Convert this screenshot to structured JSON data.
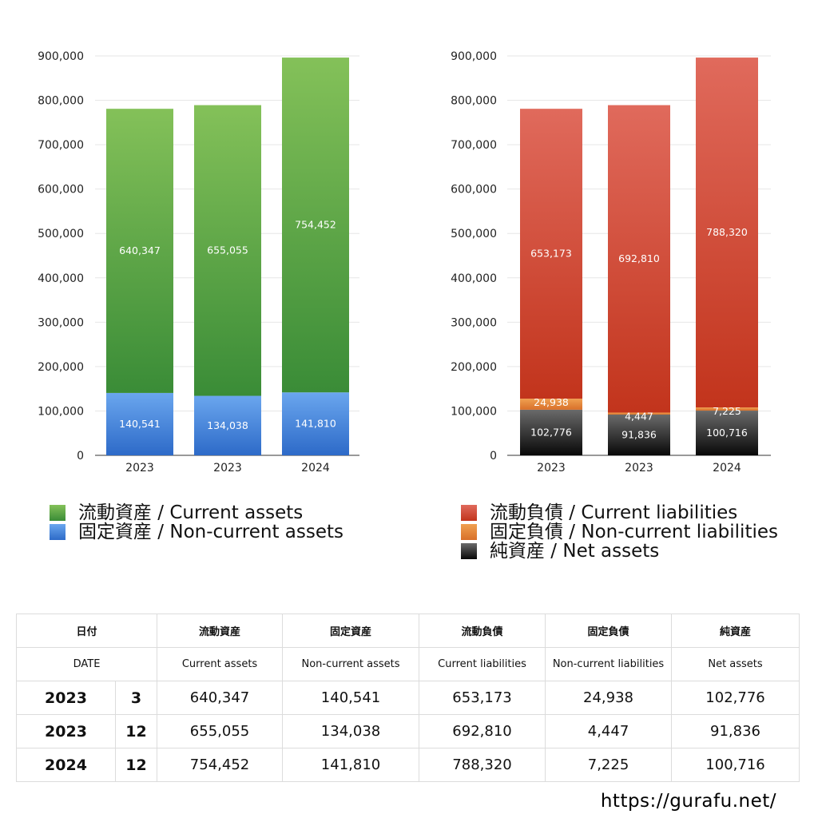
{
  "chart_data": [
    {
      "type": "bar",
      "stacked": true,
      "categories": [
        "2023",
        "2023",
        "2024"
      ],
      "ylim": [
        0,
        900000
      ],
      "yticks": [
        0,
        100000,
        200000,
        300000,
        400000,
        500000,
        600000,
        700000,
        800000,
        900000
      ],
      "ytick_labels": [
        "0",
        "100,000",
        "200,000",
        "300,000",
        "400,000",
        "500,000",
        "600,000",
        "700,000",
        "800,000",
        "900,000"
      ],
      "grid": true,
      "series": [
        {
          "name": "固定資産 / Non-current assets",
          "color": "#3f7fd9",
          "values": [
            140541,
            134038,
            141810
          ],
          "labels": [
            "140,541",
            "134,038",
            "141,810"
          ]
        },
        {
          "name": "流動資産 / Current assets",
          "color": "#57a64a",
          "values": [
            640347,
            655055,
            754452
          ],
          "labels": [
            "640,347",
            "655,055",
            "754,452"
          ]
        }
      ],
      "legend_position": "bottom"
    },
    {
      "type": "bar",
      "stacked": true,
      "categories": [
        "2023",
        "2023",
        "2024"
      ],
      "ylim": [
        0,
        900000
      ],
      "yticks": [
        0,
        100000,
        200000,
        300000,
        400000,
        500000,
        600000,
        700000,
        800000,
        900000
      ],
      "ytick_labels": [
        "0",
        "100,000",
        "200,000",
        "300,000",
        "400,000",
        "500,000",
        "600,000",
        "700,000",
        "800,000",
        "900,000"
      ],
      "grid": true,
      "series": [
        {
          "name": "純資産 / Net assets",
          "color": "#333333",
          "values": [
            102776,
            91836,
            100716
          ],
          "labels": [
            "102,776",
            "91,836",
            "100,716"
          ]
        },
        {
          "name": "固定負債 / Non-current liabilities",
          "color": "#e8883a",
          "values": [
            24938,
            4447,
            7225
          ],
          "labels": [
            "24,938",
            "4,447",
            "7,225"
          ]
        },
        {
          "name": "流動負債 / Current liabilities",
          "color": "#d44a35",
          "values": [
            653173,
            692810,
            788320
          ],
          "labels": [
            "653,173",
            "692,810",
            "788,320"
          ]
        }
      ],
      "legend_position": "bottom"
    }
  ],
  "legend_left": [
    {
      "label": "流動資産 / Current assets",
      "color": "#57a64a"
    },
    {
      "label": "固定資産 / Non-current assets",
      "color": "#3f7fd9"
    }
  ],
  "legend_right": [
    {
      "label": "流動負債 / Current liabilities",
      "color": "#d44a35"
    },
    {
      "label": "固定負債 / Non-current liabilities",
      "color": "#e8883a"
    },
    {
      "label": "純資産 / Net assets",
      "color": "#222222"
    }
  ],
  "table": {
    "header_jp": {
      "date": "日付",
      "current_assets": "流動資産",
      "noncurrent_assets": "固定資産",
      "current_liabilities": "流動負債",
      "noncurrent_liabilities": "固定負債",
      "net_assets": "純資産"
    },
    "header_en": {
      "date": "DATE",
      "current_assets": "Current assets",
      "noncurrent_assets": "Non-current assets",
      "current_liabilities": "Current liabilities",
      "noncurrent_liabilities": "Non-current liabilities",
      "net_assets": "Net assets"
    },
    "rows": [
      {
        "year": "2023",
        "month": "3",
        "current_assets": "640,347",
        "noncurrent_assets": "140,541",
        "current_liabilities": "653,173",
        "noncurrent_liabilities": "24,938",
        "net_assets": "102,776"
      },
      {
        "year": "2023",
        "month": "12",
        "current_assets": "655,055",
        "noncurrent_assets": "134,038",
        "current_liabilities": "692,810",
        "noncurrent_liabilities": "4,447",
        "net_assets": "91,836"
      },
      {
        "year": "2024",
        "month": "12",
        "current_assets": "754,452",
        "noncurrent_assets": "141,810",
        "current_liabilities": "788,320",
        "noncurrent_liabilities": "7,225",
        "net_assets": "100,716"
      }
    ]
  },
  "site_url": "https://gurafu.net/"
}
